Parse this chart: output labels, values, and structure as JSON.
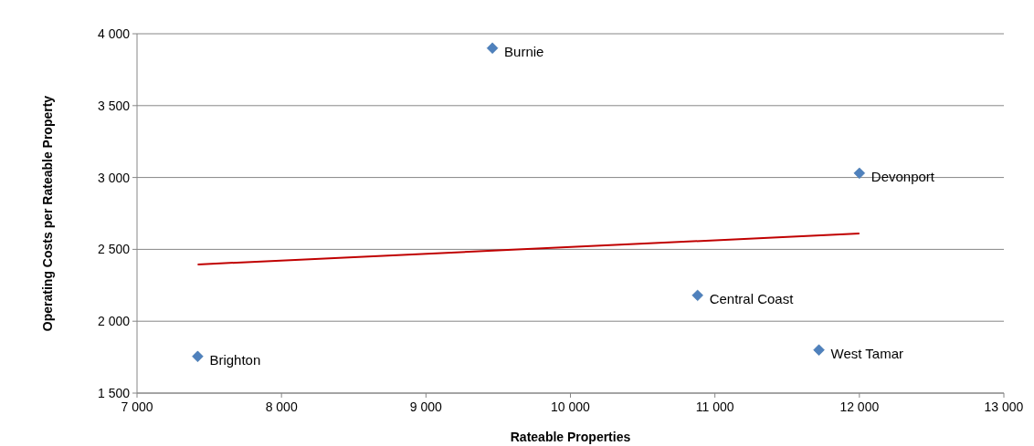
{
  "chart_data": {
    "type": "scatter",
    "xlabel": "Rateable Properties",
    "ylabel": "Operating Costs per Rateable Property",
    "xlim": [
      7000,
      13000
    ],
    "xticks": [
      {
        "value": 7000,
        "label": "7 000"
      },
      {
        "value": 8000,
        "label": "8 000"
      },
      {
        "value": 9000,
        "label": "9 000"
      },
      {
        "value": 10000,
        "label": "10 000"
      },
      {
        "value": 11000,
        "label": "11 000"
      },
      {
        "value": 12000,
        "label": "12 000"
      },
      {
        "value": 13000,
        "label": "13 000"
      }
    ],
    "ylim": [
      1500,
      4000
    ],
    "yticks": [
      {
        "value": 1500,
        "label": "1 500"
      },
      {
        "value": 2000,
        "label": "2 000"
      },
      {
        "value": 2500,
        "label": "2 500"
      },
      {
        "value": 3000,
        "label": "3 000"
      },
      {
        "value": 3500,
        "label": "3 500"
      },
      {
        "value": 4000,
        "label": "4 000"
      }
    ],
    "grid": "y",
    "series": [
      {
        "marker": "diamond",
        "color": "#4f81bd",
        "x": [
          9460,
          12000,
          10880,
          11720,
          7420
        ],
        "values": [
          3900,
          3030,
          2180,
          1800,
          1755
        ]
      },
      {
        "type": "line",
        "color": "#c00000",
        "x": [
          7420,
          12000
        ],
        "values": [
          2395,
          2610
        ]
      }
    ],
    "annotations": [
      {
        "text": "Burnie",
        "x": 9460,
        "y": 3900
      },
      {
        "text": "Devonport",
        "x": 12000,
        "y": 3030
      },
      {
        "text": "Central Coast",
        "x": 10880,
        "y": 2180
      },
      {
        "text": "West Tamar",
        "x": 11720,
        "y": 1800
      },
      {
        "text": "Brighton",
        "x": 7420,
        "y": 1755
      }
    ]
  }
}
